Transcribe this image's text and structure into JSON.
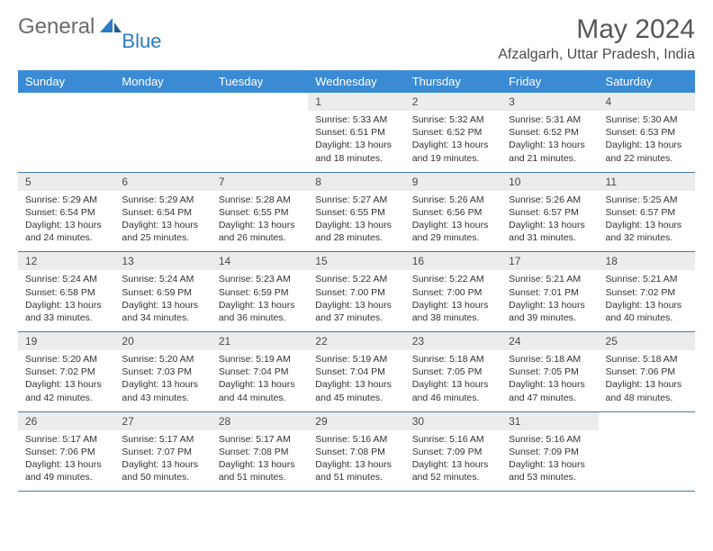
{
  "logo": {
    "text1": "General",
    "text2": "Blue"
  },
  "title": "May 2024",
  "location": "Afzalgarh, Uttar Pradesh, India",
  "colors": {
    "header_bg": "#3b8bd4",
    "header_text": "#ffffff",
    "daynum_bg": "#ececec",
    "border": "#4a7aa8",
    "logo_gray": "#6b6b6b",
    "logo_blue": "#2d7bc4"
  },
  "day_names": [
    "Sunday",
    "Monday",
    "Tuesday",
    "Wednesday",
    "Thursday",
    "Friday",
    "Saturday"
  ],
  "weeks": [
    [
      {
        "num": "",
        "sunrise": "",
        "sunset": "",
        "daylight": ""
      },
      {
        "num": "",
        "sunrise": "",
        "sunset": "",
        "daylight": ""
      },
      {
        "num": "",
        "sunrise": "",
        "sunset": "",
        "daylight": ""
      },
      {
        "num": "1",
        "sunrise": "Sunrise: 5:33 AM",
        "sunset": "Sunset: 6:51 PM",
        "daylight": "Daylight: 13 hours and 18 minutes."
      },
      {
        "num": "2",
        "sunrise": "Sunrise: 5:32 AM",
        "sunset": "Sunset: 6:52 PM",
        "daylight": "Daylight: 13 hours and 19 minutes."
      },
      {
        "num": "3",
        "sunrise": "Sunrise: 5:31 AM",
        "sunset": "Sunset: 6:52 PM",
        "daylight": "Daylight: 13 hours and 21 minutes."
      },
      {
        "num": "4",
        "sunrise": "Sunrise: 5:30 AM",
        "sunset": "Sunset: 6:53 PM",
        "daylight": "Daylight: 13 hours and 22 minutes."
      }
    ],
    [
      {
        "num": "5",
        "sunrise": "Sunrise: 5:29 AM",
        "sunset": "Sunset: 6:54 PM",
        "daylight": "Daylight: 13 hours and 24 minutes."
      },
      {
        "num": "6",
        "sunrise": "Sunrise: 5:29 AM",
        "sunset": "Sunset: 6:54 PM",
        "daylight": "Daylight: 13 hours and 25 minutes."
      },
      {
        "num": "7",
        "sunrise": "Sunrise: 5:28 AM",
        "sunset": "Sunset: 6:55 PM",
        "daylight": "Daylight: 13 hours and 26 minutes."
      },
      {
        "num": "8",
        "sunrise": "Sunrise: 5:27 AM",
        "sunset": "Sunset: 6:55 PM",
        "daylight": "Daylight: 13 hours and 28 minutes."
      },
      {
        "num": "9",
        "sunrise": "Sunrise: 5:26 AM",
        "sunset": "Sunset: 6:56 PM",
        "daylight": "Daylight: 13 hours and 29 minutes."
      },
      {
        "num": "10",
        "sunrise": "Sunrise: 5:26 AM",
        "sunset": "Sunset: 6:57 PM",
        "daylight": "Daylight: 13 hours and 31 minutes."
      },
      {
        "num": "11",
        "sunrise": "Sunrise: 5:25 AM",
        "sunset": "Sunset: 6:57 PM",
        "daylight": "Daylight: 13 hours and 32 minutes."
      }
    ],
    [
      {
        "num": "12",
        "sunrise": "Sunrise: 5:24 AM",
        "sunset": "Sunset: 6:58 PM",
        "daylight": "Daylight: 13 hours and 33 minutes."
      },
      {
        "num": "13",
        "sunrise": "Sunrise: 5:24 AM",
        "sunset": "Sunset: 6:59 PM",
        "daylight": "Daylight: 13 hours and 34 minutes."
      },
      {
        "num": "14",
        "sunrise": "Sunrise: 5:23 AM",
        "sunset": "Sunset: 6:59 PM",
        "daylight": "Daylight: 13 hours and 36 minutes."
      },
      {
        "num": "15",
        "sunrise": "Sunrise: 5:22 AM",
        "sunset": "Sunset: 7:00 PM",
        "daylight": "Daylight: 13 hours and 37 minutes."
      },
      {
        "num": "16",
        "sunrise": "Sunrise: 5:22 AM",
        "sunset": "Sunset: 7:00 PM",
        "daylight": "Daylight: 13 hours and 38 minutes."
      },
      {
        "num": "17",
        "sunrise": "Sunrise: 5:21 AM",
        "sunset": "Sunset: 7:01 PM",
        "daylight": "Daylight: 13 hours and 39 minutes."
      },
      {
        "num": "18",
        "sunrise": "Sunrise: 5:21 AM",
        "sunset": "Sunset: 7:02 PM",
        "daylight": "Daylight: 13 hours and 40 minutes."
      }
    ],
    [
      {
        "num": "19",
        "sunrise": "Sunrise: 5:20 AM",
        "sunset": "Sunset: 7:02 PM",
        "daylight": "Daylight: 13 hours and 42 minutes."
      },
      {
        "num": "20",
        "sunrise": "Sunrise: 5:20 AM",
        "sunset": "Sunset: 7:03 PM",
        "daylight": "Daylight: 13 hours and 43 minutes."
      },
      {
        "num": "21",
        "sunrise": "Sunrise: 5:19 AM",
        "sunset": "Sunset: 7:04 PM",
        "daylight": "Daylight: 13 hours and 44 minutes."
      },
      {
        "num": "22",
        "sunrise": "Sunrise: 5:19 AM",
        "sunset": "Sunset: 7:04 PM",
        "daylight": "Daylight: 13 hours and 45 minutes."
      },
      {
        "num": "23",
        "sunrise": "Sunrise: 5:18 AM",
        "sunset": "Sunset: 7:05 PM",
        "daylight": "Daylight: 13 hours and 46 minutes."
      },
      {
        "num": "24",
        "sunrise": "Sunrise: 5:18 AM",
        "sunset": "Sunset: 7:05 PM",
        "daylight": "Daylight: 13 hours and 47 minutes."
      },
      {
        "num": "25",
        "sunrise": "Sunrise: 5:18 AM",
        "sunset": "Sunset: 7:06 PM",
        "daylight": "Daylight: 13 hours and 48 minutes."
      }
    ],
    [
      {
        "num": "26",
        "sunrise": "Sunrise: 5:17 AM",
        "sunset": "Sunset: 7:06 PM",
        "daylight": "Daylight: 13 hours and 49 minutes."
      },
      {
        "num": "27",
        "sunrise": "Sunrise: 5:17 AM",
        "sunset": "Sunset: 7:07 PM",
        "daylight": "Daylight: 13 hours and 50 minutes."
      },
      {
        "num": "28",
        "sunrise": "Sunrise: 5:17 AM",
        "sunset": "Sunset: 7:08 PM",
        "daylight": "Daylight: 13 hours and 51 minutes."
      },
      {
        "num": "29",
        "sunrise": "Sunrise: 5:16 AM",
        "sunset": "Sunset: 7:08 PM",
        "daylight": "Daylight: 13 hours and 51 minutes."
      },
      {
        "num": "30",
        "sunrise": "Sunrise: 5:16 AM",
        "sunset": "Sunset: 7:09 PM",
        "daylight": "Daylight: 13 hours and 52 minutes."
      },
      {
        "num": "31",
        "sunrise": "Sunrise: 5:16 AM",
        "sunset": "Sunset: 7:09 PM",
        "daylight": "Daylight: 13 hours and 53 minutes."
      },
      {
        "num": "",
        "sunrise": "",
        "sunset": "",
        "daylight": ""
      }
    ]
  ]
}
